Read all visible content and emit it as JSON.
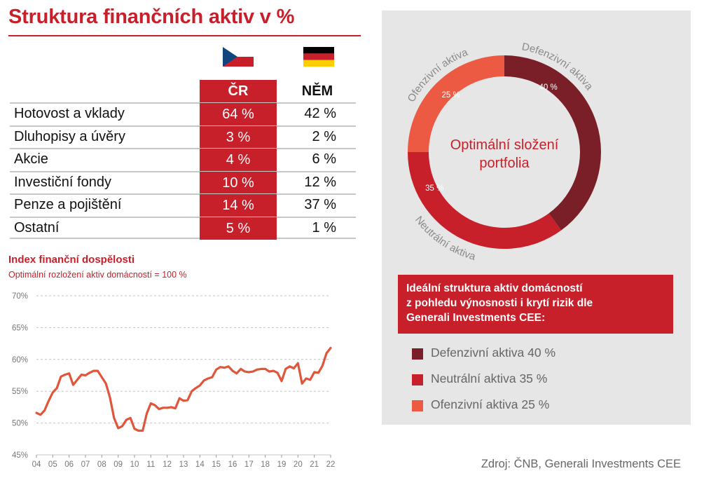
{
  "title": "Struktura finančních aktiv v %",
  "table": {
    "headers": {
      "cz": "ČR",
      "de": "NĚM"
    },
    "rows": [
      {
        "label": "Hotovost a vklady",
        "cz": "64 %",
        "de": "42 %"
      },
      {
        "label": "Dluhopisy a úvěry",
        "cz": "3 %",
        "de": "2 %"
      },
      {
        "label": "Akcie",
        "cz": "4 %",
        "de": "6 %"
      },
      {
        "label": "Investiční fondy",
        "cz": "10 %",
        "de": "12 %"
      },
      {
        "label": "Penze a pojištění",
        "cz": "14 %",
        "de": "37 %"
      },
      {
        "label": "Ostatní",
        "cz": "5 %",
        "de": "1 %"
      }
    ]
  },
  "colors": {
    "red": "#c8202a",
    "dark_red": "#7a1f28",
    "light_red": "#ec5a43",
    "gray": "#e6e6e6",
    "flag_white": "#ffffff",
    "flag_blue": "#11457e",
    "flag_black": "#000000",
    "flag_gold": "#ffce00"
  },
  "chart_data": [
    {
      "type": "line",
      "title": "Index finanční dospělosti",
      "subtitle": "Optimální rozložení aktiv domácností = 100 %",
      "xlabel": "",
      "ylabel": "",
      "ylim": [
        45,
        70
      ],
      "yticks": [
        45,
        50,
        55,
        60,
        65,
        70
      ],
      "ytick_labels": [
        "45%",
        "50%",
        "55%",
        "60%",
        "65%",
        "70%"
      ],
      "xlim": [
        2004,
        2022
      ],
      "xticks": [
        2004,
        2005,
        2006,
        2007,
        2008,
        2009,
        2010,
        2011,
        2012,
        2013,
        2014,
        2015,
        2016,
        2017,
        2018,
        2019,
        2020,
        2021,
        2022
      ],
      "xtick_labels": [
        "04",
        "05",
        "06",
        "07",
        "08",
        "09",
        "10",
        "11",
        "12",
        "13",
        "14",
        "15",
        "16",
        "17",
        "18",
        "19",
        "20",
        "21",
        "22"
      ],
      "grid": "horizontal-dashed",
      "series": [
        {
          "color": "#e0563b",
          "x": [
            2004.0,
            2004.25,
            2004.5,
            2004.75,
            2005.0,
            2005.25,
            2005.5,
            2005.75,
            2006.0,
            2006.25,
            2006.5,
            2006.75,
            2007.0,
            2007.25,
            2007.5,
            2007.75,
            2008.0,
            2008.25,
            2008.5,
            2008.75,
            2009.0,
            2009.25,
            2009.5,
            2009.75,
            2010.0,
            2010.25,
            2010.5,
            2010.75,
            2011.0,
            2011.25,
            2011.5,
            2011.75,
            2012.0,
            2012.25,
            2012.5,
            2012.75,
            2013.0,
            2013.25,
            2013.5,
            2013.75,
            2014.0,
            2014.25,
            2014.5,
            2014.75,
            2015.0,
            2015.25,
            2015.5,
            2015.75,
            2016.0,
            2016.25,
            2016.5,
            2016.75,
            2017.0,
            2017.25,
            2017.5,
            2017.75,
            2018.0,
            2018.25,
            2018.5,
            2018.75,
            2019.0,
            2019.25,
            2019.5,
            2019.75,
            2020.0,
            2020.25,
            2020.5,
            2020.75,
            2021.0,
            2021.25,
            2021.5,
            2021.75,
            2022.0
          ],
          "y": [
            51.6,
            51.3,
            52.0,
            53.5,
            54.8,
            55.5,
            57.3,
            57.6,
            57.8,
            56.0,
            56.8,
            57.6,
            57.5,
            57.9,
            58.2,
            58.2,
            57.2,
            56.2,
            54.0,
            50.8,
            49.2,
            49.5,
            50.5,
            50.8,
            49.1,
            48.8,
            48.8,
            51.5,
            53.1,
            52.8,
            52.2,
            52.4,
            52.4,
            52.5,
            52.3,
            53.9,
            53.5,
            53.6,
            55.0,
            55.5,
            55.9,
            56.7,
            57.0,
            57.2,
            58.4,
            58.8,
            58.7,
            58.9,
            58.2,
            57.8,
            58.5,
            58.1,
            58.0,
            58.1,
            58.4,
            58.5,
            58.5,
            58.1,
            58.2,
            57.9,
            56.6,
            58.5,
            58.9,
            58.6,
            59.4,
            56.2,
            57.0,
            56.8,
            58.0,
            57.9,
            59.0,
            61.0,
            61.8
          ]
        }
      ]
    },
    {
      "type": "pie",
      "center_label": "Optimální složení portfolia",
      "slices": [
        {
          "label": "Defenzivní aktiva",
          "value": 40,
          "value_label": "40 %",
          "color": "#7a1f28"
        },
        {
          "label": "Neutrální aktiva",
          "value": 35,
          "value_label": "35 %",
          "color": "#c8202a"
        },
        {
          "label": "Ofenzivní aktiva",
          "value": 25,
          "value_label": "25 %",
          "color": "#ec5a43"
        }
      ]
    }
  ],
  "panel": {
    "box_lines": [
      "Ideální struktura aktiv domácností",
      "z pohledu výnosnosti i  krytí rizik dle",
      "Generali Investments CEE:"
    ],
    "legend": [
      {
        "text": "Defenzivní aktiva 40 %",
        "color": "#7a1f28"
      },
      {
        "text": "Neutrální aktiva 35 %",
        "color": "#c8202a"
      },
      {
        "text": "Ofenzivní aktiva 25 %",
        "color": "#ec5a43"
      }
    ]
  },
  "source": "Zdroj: ČNB, Generali Investments CEE"
}
